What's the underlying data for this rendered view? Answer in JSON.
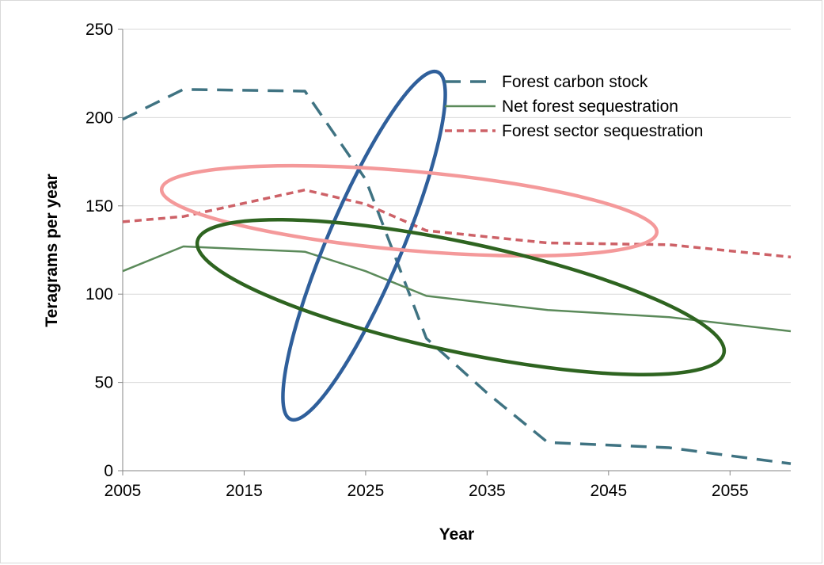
{
  "chart_data": {
    "type": "line",
    "title": "",
    "xlabel": "Year",
    "ylabel": "Teragrams per year",
    "xlim": [
      2005,
      2060
    ],
    "ylim": [
      0,
      250
    ],
    "x_ticks": [
      "2005",
      "2015",
      "2025",
      "2035",
      "2045",
      "2055"
    ],
    "y_ticks": [
      "0",
      "50",
      "100",
      "150",
      "200",
      "250"
    ],
    "grid": "horizontal",
    "legend_position": "top-right",
    "series": [
      {
        "name": "Forest carbon stock",
        "style": "long-dash",
        "color": "#3f7382",
        "x": [
          2005,
          2010,
          2020,
          2025,
          2030,
          2035,
          2040,
          2050,
          2060
        ],
        "y": [
          199,
          216,
          215,
          165,
          75,
          44,
          16,
          13,
          4
        ]
      },
      {
        "name": "Net forest sequestration",
        "style": "solid",
        "color": "#5b8a5a",
        "x": [
          2005,
          2010,
          2020,
          2025,
          2030,
          2040,
          2050,
          2060
        ],
        "y": [
          113,
          127,
          124,
          113,
          99,
          91,
          87,
          79
        ]
      },
      {
        "name": "Forest sector sequestration",
        "style": "short-dash",
        "color": "#cd6167",
        "x": [
          2005,
          2010,
          2020,
          2025,
          2030,
          2040,
          2050,
          2060
        ],
        "y": [
          141,
          144,
          159,
          151,
          136,
          129,
          128,
          121
        ]
      }
    ],
    "annotations": [
      {
        "shape": "ellipse",
        "color": "#2f5f9b",
        "label": ""
      },
      {
        "shape": "ellipse",
        "color": "#f4999a",
        "label": ""
      },
      {
        "shape": "ellipse",
        "color": "#2e6420",
        "label": ""
      }
    ]
  }
}
